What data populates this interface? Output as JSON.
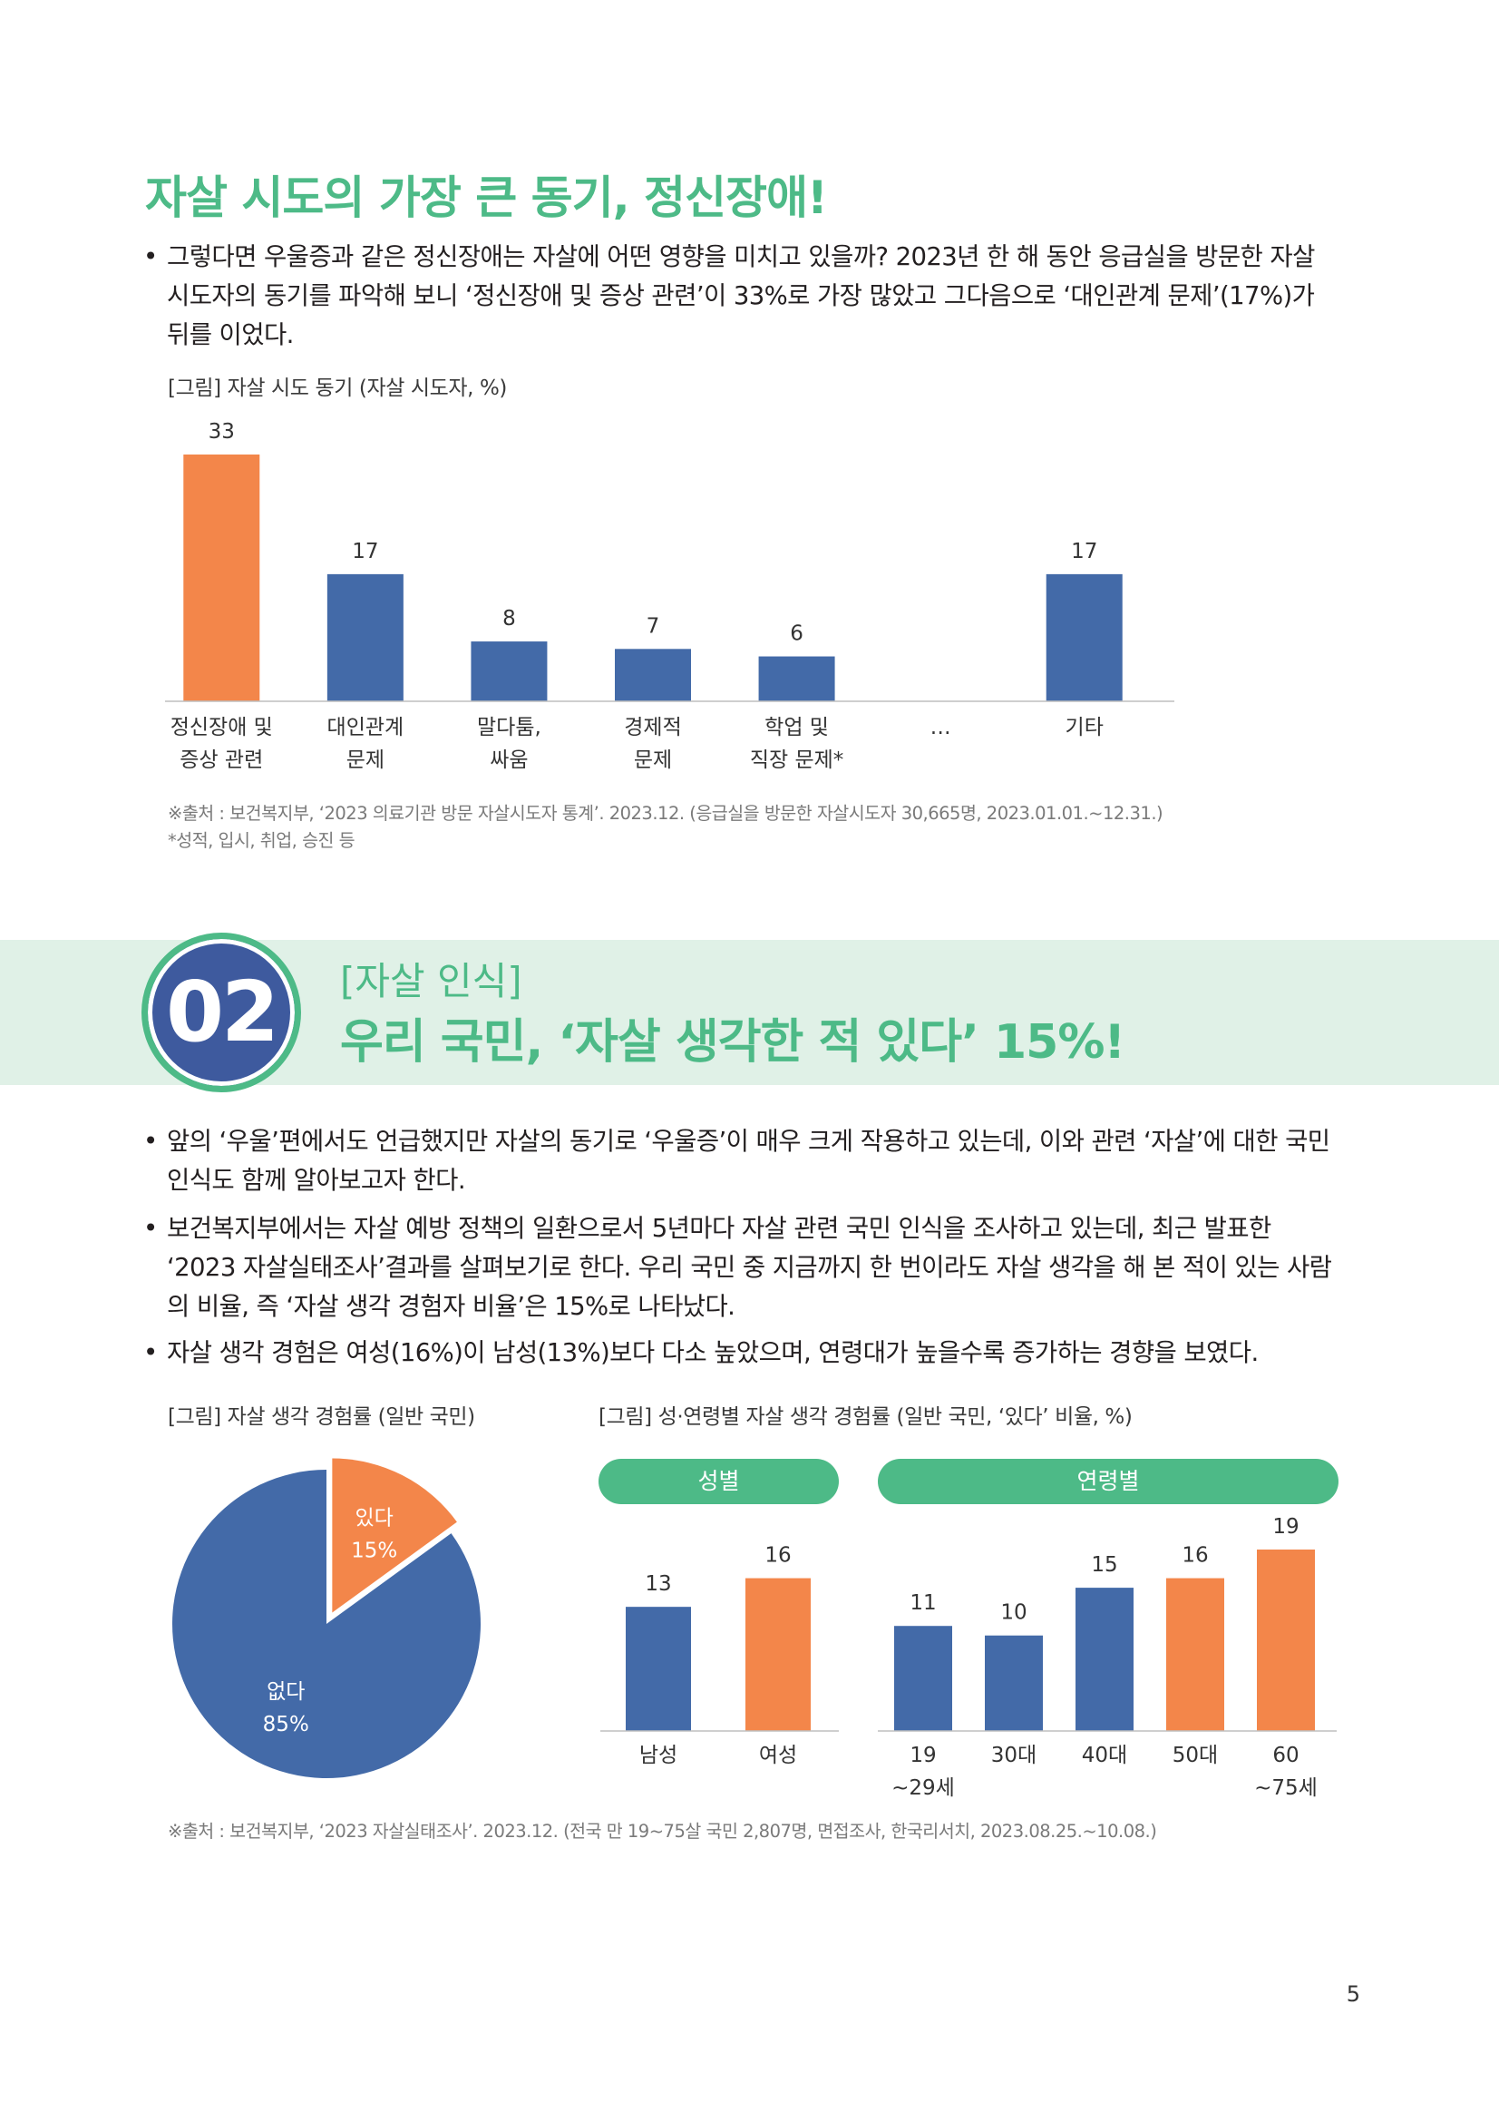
{
  "section1": {
    "title": "자살 시도의 가장 큰 동기, 정신장애!",
    "bullet_mark": "•",
    "paragraph_lines": [
      "그렇다면 우울증과 같은 정신장애는 자살에 어떤 영향을 미치고 있을까? 2023년 한 해 동안 응급실을 방문한 자살",
      "시도자의 동기를 파악해 보니 ‘정신장애 및 증상 관련’이 33%로 가장 많았고 그다음으로 ‘대인관계 문제’(17%)가",
      "뒤를 이었다."
    ],
    "figure_caption": "[그림] 자살 시도 동기 (자살 시도자, %)",
    "source_lines": [
      "※출처 : 보건복지부, ‘2023 의료기관 방문 자살시도자 통계’. 2023.12. (응급실을 방문한 자살시도자 30,665명, 2023.01.01.~12.31.)",
      "*성적, 입시, 취업, 승진 등"
    ]
  },
  "section2": {
    "number": "02",
    "subtitle": "[자살 인식]",
    "title": "우리 국민, ‘자살 생각한 적 있다’ 15%!",
    "bullets": [
      [
        "앞의 ‘우울’편에서도 언급했지만 자살의 동기로 ‘우울증’이 매우 크게 작용하고 있는데, 이와 관련 ‘자살’에 대한 국민",
        "인식도 함께 알아보고자 한다."
      ],
      [
        "보건복지부에서는 자살 예방 정책의 일환으로서 5년마다 자살 관련 국민 인식을 조사하고 있는데, 최근 발표한",
        "‘2023 자살실태조사’결과를 살펴보기로 한다. 우리 국민 중 지금까지 한 번이라도 자살 생각을 해 본 적이 있는 사람",
        "의 비율, 즉 ‘자살 생각 경험자 비율’은 15%로 나타났다."
      ],
      [
        "자살 생각 경험은 여성(16%)이 남성(13%)보다 다소 높았으며, 연령대가 높을수록 증가하는 경향을 보였다."
      ]
    ],
    "pie_caption": "[그림] 자살 생각 경험률 (일반 국민)",
    "bar_caption": "[그림] 성·연령별 자살 생각 경험률 (일반 국민, ‘있다’ 비율, %)",
    "pill_gender": "성별",
    "pill_age": "연령별",
    "source": "※출처 : 보건복지부, ‘2023 자살실태조사’. 2023.12. (전국 만 19~75살 국민 2,807명, 면접조사, 한국리서치, 2023.08.25.~10.08.)"
  },
  "page_number": "5",
  "colors": {
    "green": "#4dba87",
    "blue": "#436aa8",
    "orange": "#f3864a",
    "band": "#e0f1e7",
    "navy": "#3e5a9e"
  },
  "chart_data": [
    {
      "type": "bar",
      "categories": [
        [
          "정신장애 및",
          "증상 관련"
        ],
        [
          "대인관계",
          "문제"
        ],
        [
          "말다툼,",
          "싸움"
        ],
        [
          "경제적",
          "문제"
        ],
        [
          "학업 및",
          "직장 문제*"
        ],
        [
          "…"
        ],
        [
          "기타"
        ]
      ],
      "values": [
        33,
        17,
        8,
        7,
        6,
        null,
        17
      ],
      "colors": [
        "#f3864a",
        "#436aa8",
        "#436aa8",
        "#436aa8",
        "#436aa8",
        null,
        "#436aa8"
      ],
      "ylim": [
        0,
        33
      ]
    },
    {
      "type": "pie",
      "labels": [
        "있다",
        "없다"
      ],
      "values": [
        15,
        85
      ],
      "value_labels": [
        "15%",
        "85%"
      ],
      "colors": [
        "#f3864a",
        "#436aa8"
      ]
    },
    {
      "type": "bar",
      "categories": [
        [
          "남성"
        ],
        [
          "여성"
        ]
      ],
      "values": [
        13,
        16
      ],
      "colors": [
        "#436aa8",
        "#f3864a"
      ],
      "ylim": [
        0,
        19
      ]
    },
    {
      "type": "bar",
      "categories": [
        [
          "19",
          "~29세"
        ],
        [
          "30대"
        ],
        [
          "40대"
        ],
        [
          "50대"
        ],
        [
          "60",
          "~75세"
        ]
      ],
      "values": [
        11,
        10,
        15,
        16,
        19
      ],
      "colors": [
        "#436aa8",
        "#436aa8",
        "#436aa8",
        "#f3864a",
        "#f3864a"
      ],
      "ylim": [
        0,
        19
      ]
    }
  ]
}
